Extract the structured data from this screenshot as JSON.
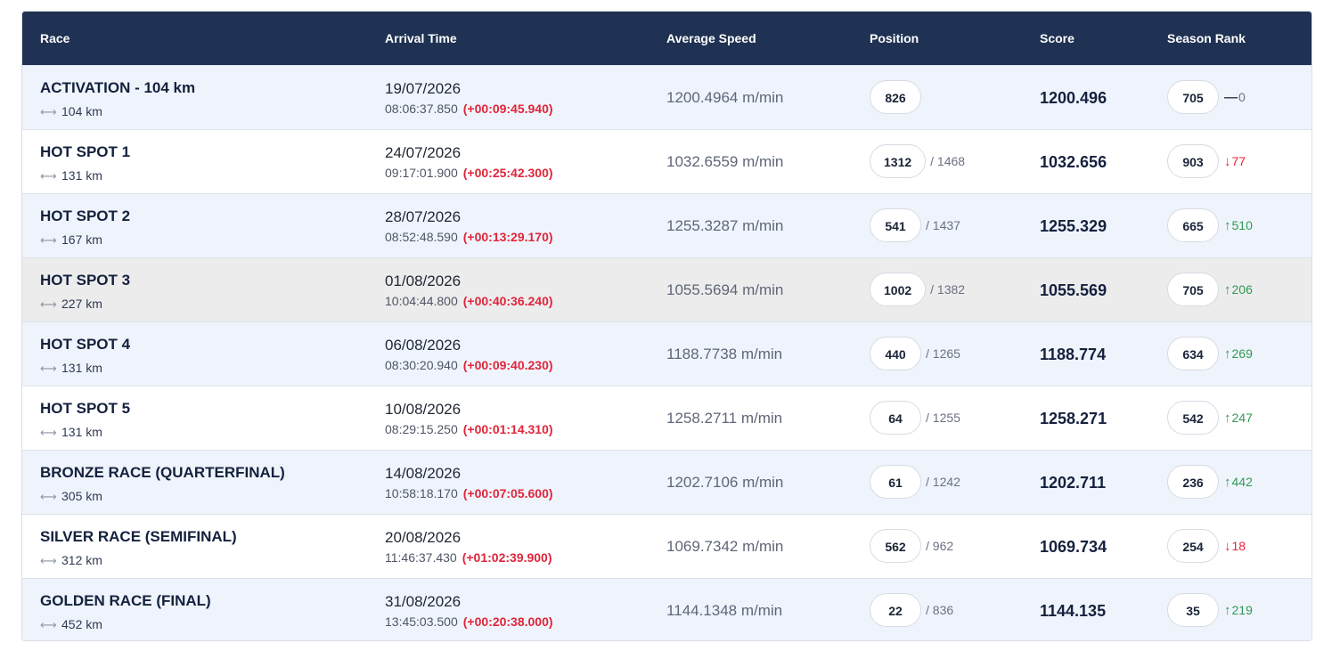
{
  "headers": {
    "race": "Race",
    "arrival": "Arrival Time",
    "speed": "Average Speed",
    "position": "Position",
    "score": "Score",
    "rank": "Season Rank"
  },
  "colors": {
    "header_bg": "#1f3253",
    "row_alt_bg": "#eff4fc",
    "row_hover_bg": "#ececec",
    "gap_red": "#e0253a",
    "up_green": "#2e9a54"
  },
  "rows": [
    {
      "race": "ACTIVATION - 104 km",
      "distance": "104 km",
      "date": "19/07/2026",
      "time": "08:06:37.850",
      "gap": "(+00:09:45.940)",
      "speed": "1200.4964 m/min",
      "position": "826",
      "total": "",
      "score": "1200.496",
      "rank": "705",
      "delta": "0",
      "trend": "flat",
      "bg": "alt"
    },
    {
      "race": "HOT SPOT 1",
      "distance": "131 km",
      "date": "24/07/2026",
      "time": "09:17:01.900",
      "gap": "(+00:25:42.300)",
      "speed": "1032.6559 m/min",
      "position": "1312",
      "total": "/ 1468",
      "score": "1032.656",
      "rank": "903",
      "delta": "77",
      "trend": "down",
      "bg": "white"
    },
    {
      "race": "HOT SPOT 2",
      "distance": "167 km",
      "date": "28/07/2026",
      "time": "08:52:48.590",
      "gap": "(+00:13:29.170)",
      "speed": "1255.3287 m/min",
      "position": "541",
      "total": "/ 1437",
      "score": "1255.329",
      "rank": "665",
      "delta": "510",
      "trend": "up",
      "bg": "alt"
    },
    {
      "race": "HOT SPOT 3",
      "distance": "227 km",
      "date": "01/08/2026",
      "time": "10:04:44.800",
      "gap": "(+00:40:36.240)",
      "speed": "1055.5694 m/min",
      "position": "1002",
      "total": "/ 1382",
      "score": "1055.569",
      "rank": "705",
      "delta": "206",
      "trend": "up",
      "bg": "hover"
    },
    {
      "race": "HOT SPOT 4",
      "distance": "131 km",
      "date": "06/08/2026",
      "time": "08:30:20.940",
      "gap": "(+00:09:40.230)",
      "speed": "1188.7738 m/min",
      "position": "440",
      "total": "/ 1265",
      "score": "1188.774",
      "rank": "634",
      "delta": "269",
      "trend": "up",
      "bg": "alt"
    },
    {
      "race": "HOT SPOT 5",
      "distance": "131 km",
      "date": "10/08/2026",
      "time": "08:29:15.250",
      "gap": "(+00:01:14.310)",
      "speed": "1258.2711 m/min",
      "position": "64",
      "total": "/ 1255",
      "score": "1258.271",
      "rank": "542",
      "delta": "247",
      "trend": "up",
      "bg": "white"
    },
    {
      "race": "BRONZE RACE (QUARTERFINAL)",
      "distance": "305 km",
      "date": "14/08/2026",
      "time": "10:58:18.170",
      "gap": "(+00:07:05.600)",
      "speed": "1202.7106 m/min",
      "position": "61",
      "total": "/ 1242",
      "score": "1202.711",
      "rank": "236",
      "delta": "442",
      "trend": "up",
      "bg": "alt"
    },
    {
      "race": "SILVER RACE (SEMIFINAL)",
      "distance": "312 km",
      "date": "20/08/2026",
      "time": "11:46:37.430",
      "gap": "(+01:02:39.900)",
      "speed": "1069.7342 m/min",
      "position": "562",
      "total": "/ 962",
      "score": "1069.734",
      "rank": "254",
      "delta": "18",
      "trend": "down",
      "bg": "white"
    },
    {
      "race": "GOLDEN RACE (FINAL)",
      "distance": "452 km",
      "date": "31/08/2026",
      "time": "13:45:03.500",
      "gap": "(+00:20:38.000)",
      "speed": "1144.1348 m/min",
      "position": "22",
      "total": "/ 836",
      "score": "1144.135",
      "rank": "35",
      "delta": "219",
      "trend": "up",
      "bg": "alt"
    }
  ]
}
